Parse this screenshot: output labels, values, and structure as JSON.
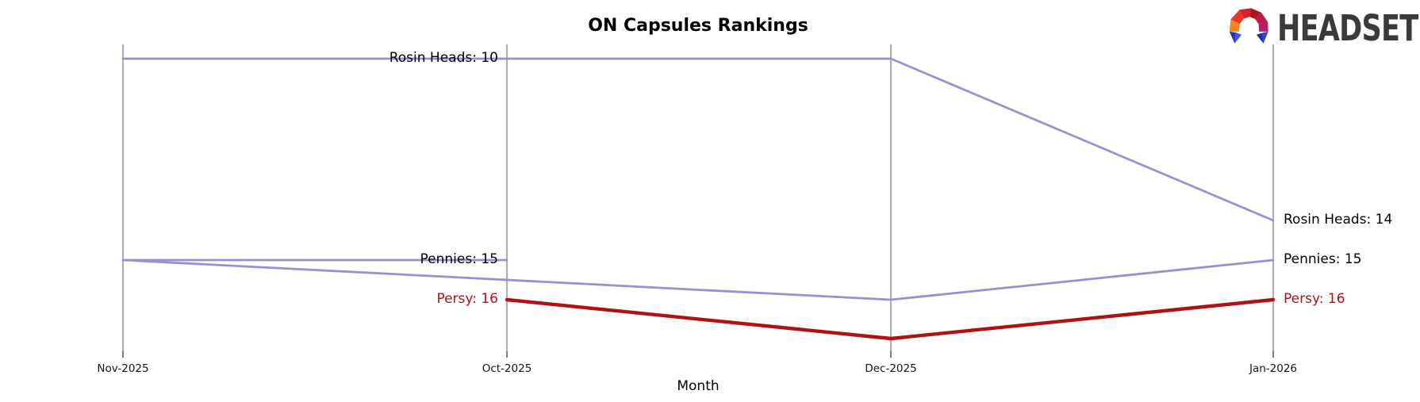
{
  "header": {
    "title": "ON Capsules Rankings"
  },
  "brand": {
    "name": "HEADSET"
  },
  "chart_data": {
    "type": "line",
    "subtype": "bump-ranking",
    "title": "ON Capsules Rankings",
    "xlabel": "Month",
    "ylabel": "",
    "y_axis_inverted": true,
    "rank_range": [
      10,
      17
    ],
    "grid": "vertical-axis-lines-only",
    "x_display_order": [
      "Nov-2025",
      "Oct-2025",
      "Dec-2025",
      "Jan-2026"
    ],
    "series": [
      {
        "name": "Rosin Heads",
        "color": "#9d8ed4",
        "label_color": "#000000",
        "emphasis": false,
        "start_label": "Rosin Heads: 10",
        "end_label": "Rosin Heads: 14",
        "points": [
          {
            "month": "Oct-2025",
            "rank": 10
          },
          {
            "month": "Nov-2025",
            "rank": 10
          },
          {
            "month": "Dec-2025",
            "rank": 10
          },
          {
            "month": "Jan-2026",
            "rank": 14
          }
        ]
      },
      {
        "name": "Pennies",
        "color": "#9d8ed4",
        "label_color": "#000000",
        "emphasis": false,
        "start_label": "Pennies: 15",
        "end_label": "Pennies: 15",
        "points": [
          {
            "month": "Oct-2025",
            "rank": 15
          },
          {
            "month": "Nov-2025",
            "rank": 15
          },
          {
            "month": "Dec-2025",
            "rank": 16
          },
          {
            "month": "Jan-2026",
            "rank": 15
          }
        ]
      },
      {
        "name": "Persy",
        "color": "#b01115",
        "label_color": "#b01115",
        "emphasis": true,
        "start_label": "Persy: 16",
        "end_label": "Persy: 16",
        "points": [
          {
            "month": "Oct-2025",
            "rank": 16
          },
          {
            "month": "Dec-2025",
            "rank": 17
          },
          {
            "month": "Jan-2026",
            "rank": 16
          }
        ]
      }
    ]
  }
}
